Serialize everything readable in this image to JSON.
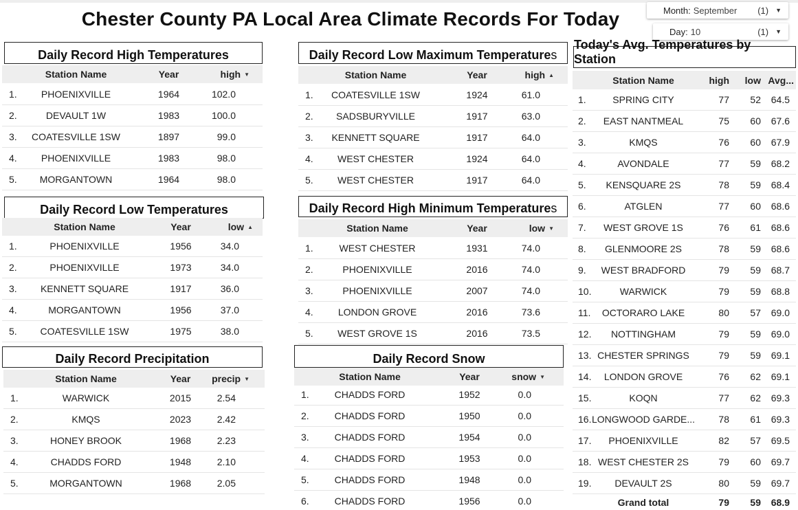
{
  "title": "Chester County PA Local Area Climate Records For Today",
  "filters": {
    "month": {
      "label": "Month:",
      "value": "September",
      "count": "(1)"
    },
    "day": {
      "label": "Day:",
      "value": "10",
      "count": "(1)"
    }
  },
  "high_temps": {
    "title": "Daily Record High Temperatures",
    "headers": {
      "station": "Station Name",
      "year": "Year",
      "value": "high"
    },
    "rows": [
      {
        "n": "1.",
        "station": "PHOENIXVILLE",
        "year": "1964",
        "value": "102.0"
      },
      {
        "n": "2.",
        "station": "DEVAULT 1W",
        "year": "1983",
        "value": "100.0"
      },
      {
        "n": "3.",
        "station": "COATESVILLE 1SW",
        "year": "1897",
        "value": "99.0"
      },
      {
        "n": "4.",
        "station": "PHOENIXVILLE",
        "year": "1983",
        "value": "98.0"
      },
      {
        "n": "5.",
        "station": "MORGANTOWN",
        "year": "1964",
        "value": "98.0"
      }
    ]
  },
  "low_temps": {
    "title": "Daily Record Low Temperatures",
    "headers": {
      "station": "Station Name",
      "year": "Year",
      "value": "low"
    },
    "rows": [
      {
        "n": "1.",
        "station": "PHOENIXVILLE",
        "year": "1956",
        "value": "34.0"
      },
      {
        "n": "2.",
        "station": "PHOENIXVILLE",
        "year": "1973",
        "value": "34.0"
      },
      {
        "n": "3.",
        "station": "KENNETT SQUARE",
        "year": "1917",
        "value": "36.0"
      },
      {
        "n": "4.",
        "station": "MORGANTOWN",
        "year": "1956",
        "value": "37.0"
      },
      {
        "n": "5.",
        "station": "COATESVILLE 1SW",
        "year": "1975",
        "value": "38.0"
      }
    ]
  },
  "precip": {
    "title": "Daily Record Precipitation",
    "headers": {
      "station": "Station Name",
      "year": "Year",
      "value": "precip"
    },
    "rows": [
      {
        "n": "1.",
        "station": "WARWICK",
        "year": "2015",
        "value": "2.54"
      },
      {
        "n": "2.",
        "station": "KMQS",
        "year": "2023",
        "value": "2.42"
      },
      {
        "n": "3.",
        "station": "HONEY BROOK",
        "year": "1968",
        "value": "2.23"
      },
      {
        "n": "4.",
        "station": "CHADDS FORD",
        "year": "1948",
        "value": "2.10"
      },
      {
        "n": "5.",
        "station": "MORGANTOWN",
        "year": "1968",
        "value": "2.05"
      }
    ]
  },
  "low_max": {
    "title_main": "Daily Record Low Maximum Temperature",
    "title_tail": "s",
    "headers": {
      "station": "Station Name",
      "year": "Year",
      "value": "high"
    },
    "rows": [
      {
        "n": "1.",
        "station": "COATESVILLE 1SW",
        "year": "1924",
        "value": "61.0"
      },
      {
        "n": "2.",
        "station": "SADSBURYVILLE",
        "year": "1917",
        "value": "63.0"
      },
      {
        "n": "3.",
        "station": "KENNETT SQUARE",
        "year": "1917",
        "value": "64.0"
      },
      {
        "n": "4.",
        "station": "WEST CHESTER",
        "year": "1924",
        "value": "64.0"
      },
      {
        "n": "5.",
        "station": "WEST CHESTER",
        "year": "1917",
        "value": "64.0"
      }
    ]
  },
  "high_min": {
    "title_main": "Daily Record High Minimum Temperature",
    "title_tail": "s",
    "headers": {
      "station": "Station Name",
      "year": "Year",
      "value": "low"
    },
    "rows": [
      {
        "n": "1.",
        "station": "WEST CHESTER",
        "year": "1931",
        "value": "74.0"
      },
      {
        "n": "2.",
        "station": "PHOENIXVILLE",
        "year": "2016",
        "value": "74.0"
      },
      {
        "n": "3.",
        "station": "PHOENIXVILLE",
        "year": "2007",
        "value": "74.0"
      },
      {
        "n": "4.",
        "station": "LONDON GROVE",
        "year": "2016",
        "value": "73.6"
      },
      {
        "n": "5.",
        "station": "WEST GROVE 1S",
        "year": "2016",
        "value": "73.5"
      }
    ]
  },
  "snow": {
    "title": "Daily Record Snow",
    "headers": {
      "station": "Station Name",
      "year": "Year",
      "value": "snow"
    },
    "rows": [
      {
        "n": "1.",
        "station": "CHADDS FORD",
        "year": "1952",
        "value": "0.0"
      },
      {
        "n": "2.",
        "station": "CHADDS FORD",
        "year": "1950",
        "value": "0.0"
      },
      {
        "n": "3.",
        "station": "CHADDS FORD",
        "year": "1954",
        "value": "0.0"
      },
      {
        "n": "4.",
        "station": "CHADDS FORD",
        "year": "1953",
        "value": "0.0"
      },
      {
        "n": "5.",
        "station": "CHADDS FORD",
        "year": "1948",
        "value": "0.0"
      },
      {
        "n": "6.",
        "station": "CHADDS FORD",
        "year": "1956",
        "value": "0.0"
      }
    ]
  },
  "avg": {
    "title": "Today's Avg. Temperatures by Station",
    "headers": {
      "station": "Station Name",
      "high": "high",
      "low": "low",
      "avg": "Avg..."
    },
    "rows": [
      {
        "n": "1.",
        "station": "SPRING CITY",
        "high": "77",
        "low": "52",
        "avg": "64.5"
      },
      {
        "n": "2.",
        "station": "EAST NANTMEAL",
        "high": "75",
        "low": "60",
        "avg": "67.6"
      },
      {
        "n": "3.",
        "station": "KMQS",
        "high": "76",
        "low": "60",
        "avg": "67.9"
      },
      {
        "n": "4.",
        "station": "AVONDALE",
        "high": "77",
        "low": "59",
        "avg": "68.2"
      },
      {
        "n": "5.",
        "station": "KENSQUARE 2S",
        "high": "78",
        "low": "59",
        "avg": "68.4"
      },
      {
        "n": "6.",
        "station": "ATGLEN",
        "high": "77",
        "low": "60",
        "avg": "68.6"
      },
      {
        "n": "7.",
        "station": "WEST GROVE 1S",
        "high": "76",
        "low": "61",
        "avg": "68.6"
      },
      {
        "n": "8.",
        "station": "GLENMOORE 2S",
        "high": "78",
        "low": "59",
        "avg": "68.6"
      },
      {
        "n": "9.",
        "station": "WEST BRADFORD",
        "high": "79",
        "low": "59",
        "avg": "68.7"
      },
      {
        "n": "10.",
        "station": "WARWICK",
        "high": "79",
        "low": "59",
        "avg": "68.8"
      },
      {
        "n": "11.",
        "station": "OCTORARO LAKE",
        "high": "80",
        "low": "57",
        "avg": "69.0"
      },
      {
        "n": "12.",
        "station": "NOTTINGHAM",
        "high": "79",
        "low": "59",
        "avg": "69.0"
      },
      {
        "n": "13.",
        "station": "CHESTER SPRINGS",
        "high": "79",
        "low": "59",
        "avg": "69.1"
      },
      {
        "n": "14.",
        "station": "LONDON GROVE",
        "high": "76",
        "low": "62",
        "avg": "69.1"
      },
      {
        "n": "15.",
        "station": "KOQN",
        "high": "77",
        "low": "62",
        "avg": "69.3"
      },
      {
        "n": "16.",
        "station": "LONGWOOD GARDE...",
        "high": "78",
        "low": "61",
        "avg": "69.3"
      },
      {
        "n": "17.",
        "station": "PHOENIXVILLE",
        "high": "82",
        "low": "57",
        "avg": "69.5"
      },
      {
        "n": "18.",
        "station": "WEST CHESTER 2S",
        "high": "79",
        "low": "60",
        "avg": "69.7"
      },
      {
        "n": "19.",
        "station": "DEVAULT 2S",
        "high": "80",
        "low": "59",
        "avg": "69.7"
      }
    ],
    "total": {
      "label": "Grand total",
      "high": "79",
      "low": "59",
      "avg": "68.9"
    }
  }
}
